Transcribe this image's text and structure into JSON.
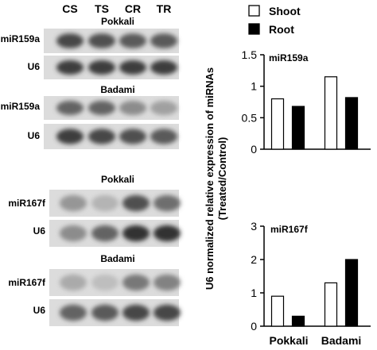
{
  "blots": {
    "lanes": [
      "CS",
      "TS",
      "CR",
      "TR"
    ],
    "sections": [
      {
        "title": "Pokkali",
        "rows": [
          {
            "label": "miR159a",
            "intensity": [
              0.8,
              0.75,
              0.7,
              0.7
            ]
          },
          {
            "label": "U6",
            "intensity": [
              0.85,
              0.85,
              0.85,
              0.85
            ]
          }
        ]
      },
      {
        "title": "Badami",
        "rows": [
          {
            "label": "miR159a",
            "intensity": [
              0.65,
              0.65,
              0.45,
              0.35
            ]
          },
          {
            "label": "U6",
            "intensity": [
              0.85,
              0.8,
              0.75,
              0.7
            ]
          }
        ]
      },
      {
        "title": "Pokkali",
        "rows": [
          {
            "label": "miR167f",
            "intensity": [
              0.4,
              0.25,
              0.75,
              0.6
            ]
          },
          {
            "label": "U6",
            "intensity": [
              0.45,
              0.65,
              0.9,
              0.9
            ]
          }
        ]
      },
      {
        "title": "Badami",
        "rows": [
          {
            "label": "miR167f",
            "intensity": [
              0.3,
              0.2,
              0.55,
              0.5
            ]
          },
          {
            "label": "U6",
            "intensity": [
              0.65,
              0.7,
              0.8,
              0.8
            ]
          }
        ]
      }
    ]
  },
  "chart_data": [
    {
      "type": "bar",
      "title": "miR159a",
      "categories": [
        "Pokkali",
        "Badami"
      ],
      "series": [
        {
          "name": "Shoot",
          "values": [
            0.8,
            1.15
          ]
        },
        {
          "name": "Root",
          "values": [
            0.68,
            0.82
          ]
        }
      ],
      "ylim": [
        0,
        1.5
      ],
      "yticks": [
        "0",
        "0.5",
        "1",
        "1.5"
      ],
      "ytick_values": [
        0,
        0.5,
        1,
        1.5
      ],
      "grid": false
    },
    {
      "type": "bar",
      "title": "miR167f",
      "categories": [
        "Pokkali",
        "Badami"
      ],
      "series": [
        {
          "name": "Shoot",
          "values": [
            0.9,
            1.3
          ]
        },
        {
          "name": "Root",
          "values": [
            0.3,
            2.0
          ]
        }
      ],
      "ylim": [
        0,
        3
      ],
      "yticks": [
        "0",
        "1",
        "2",
        "3"
      ],
      "ytick_values": [
        0,
        1,
        2,
        3
      ],
      "grid": false
    }
  ],
  "legend": {
    "items": [
      "Shoot",
      "Root"
    ],
    "position": "top-right"
  },
  "ylabel": {
    "line1": "U6 normalized relative expression of miRNAs",
    "line2": "(Treated/Control)"
  },
  "xcategories": [
    "Pokkali",
    "Badami"
  ],
  "colors": {
    "shoot": "#ffffff",
    "root": "#000000",
    "axis": "#000000"
  }
}
